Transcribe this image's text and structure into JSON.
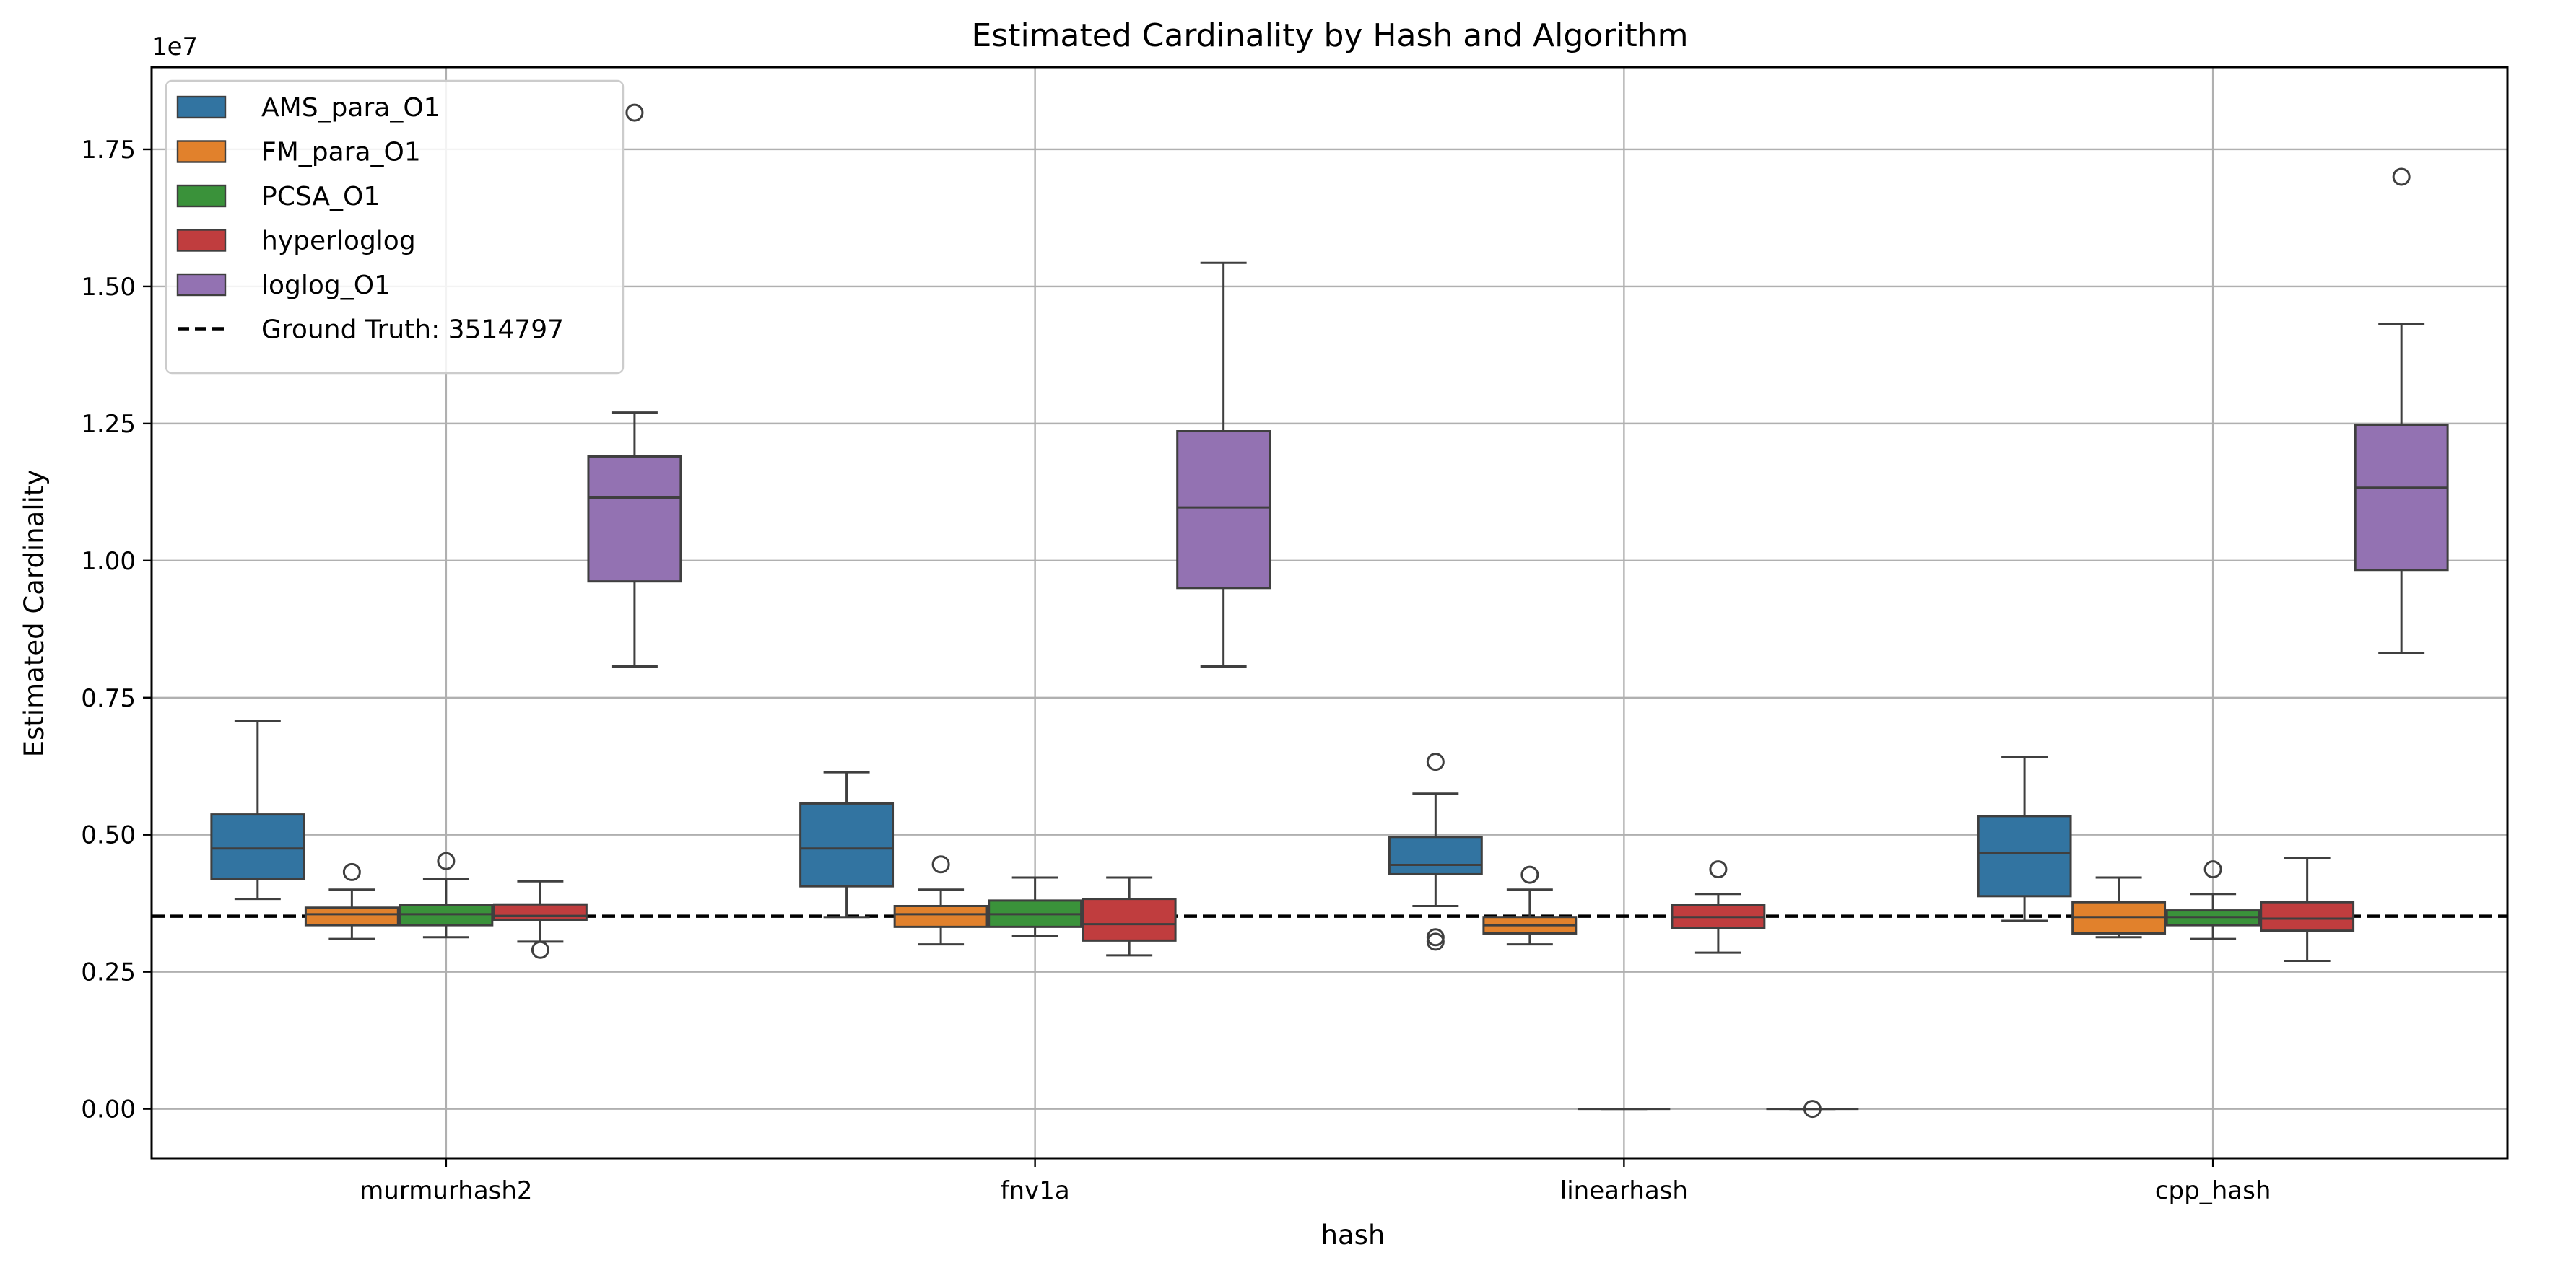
{
  "chart_data": {
    "type": "box",
    "title": "Estimated Cardinality by Hash and Algorithm",
    "xlabel": "hash",
    "ylabel": "Estimated Cardinality",
    "y_offset_label": "1e7",
    "y_multiplier": 10000000,
    "ylim": [
      -0.09,
      1.9
    ],
    "yticks": [
      0.0,
      0.25,
      0.5,
      0.75,
      1.0,
      1.25,
      1.5,
      1.75
    ],
    "ytick_labels": [
      "0.00",
      "0.25",
      "0.50",
      "0.75",
      "1.00",
      "1.25",
      "1.50",
      "1.75"
    ],
    "grid": true,
    "legend_position": "top-left",
    "categories": [
      "murmurhash2",
      "fnv1a",
      "linearhash",
      "cpp_hash"
    ],
    "series": [
      {
        "name": "AMS_para_O1",
        "color": "#3274a1",
        "boxes": [
          {
            "whislo": 0.383,
            "q1": 0.42,
            "med": 0.475,
            "q3": 0.537,
            "whishi": 0.707,
            "fliers": []
          },
          {
            "whislo": 0.35,
            "q1": 0.406,
            "med": 0.475,
            "q3": 0.557,
            "whishi": 0.614,
            "fliers": []
          },
          {
            "whislo": 0.37,
            "q1": 0.428,
            "med": 0.445,
            "q3": 0.496,
            "whishi": 0.575,
            "fliers": [
              0.633,
              0.313,
              0.305
            ]
          },
          {
            "whislo": 0.343,
            "q1": 0.388,
            "med": 0.467,
            "q3": 0.534,
            "whishi": 0.642,
            "fliers": []
          }
        ]
      },
      {
        "name": "FM_para_O1",
        "color": "#e1812c",
        "boxes": [
          {
            "whislo": 0.31,
            "q1": 0.335,
            "med": 0.355,
            "q3": 0.367,
            "whishi": 0.4,
            "fliers": [
              0.432
            ]
          },
          {
            "whislo": 0.3,
            "q1": 0.332,
            "med": 0.355,
            "q3": 0.37,
            "whishi": 0.4,
            "fliers": [
              0.446
            ]
          },
          {
            "whislo": 0.3,
            "q1": 0.32,
            "med": 0.335,
            "q3": 0.35,
            "whishi": 0.4,
            "fliers": [
              0.427
            ]
          },
          {
            "whislo": 0.313,
            "q1": 0.32,
            "med": 0.35,
            "q3": 0.377,
            "whishi": 0.422,
            "fliers": []
          }
        ]
      },
      {
        "name": "PCSA_O1",
        "color": "#3a923a",
        "boxes": [
          {
            "whislo": 0.313,
            "q1": 0.335,
            "med": 0.355,
            "q3": 0.372,
            "whishi": 0.42,
            "fliers": [
              0.452
            ]
          },
          {
            "whislo": 0.316,
            "q1": 0.332,
            "med": 0.355,
            "q3": 0.38,
            "whishi": 0.422,
            "fliers": []
          },
          {
            "whislo": 0.0,
            "q1": 0.0,
            "med": 0.0,
            "q3": 0.0,
            "whishi": 0.0,
            "fliers": []
          },
          {
            "whislo": 0.31,
            "q1": 0.335,
            "med": 0.35,
            "q3": 0.362,
            "whishi": 0.392,
            "fliers": [
              0.437
            ]
          }
        ]
      },
      {
        "name": "hyperloglog",
        "color": "#c03d3e",
        "boxes": [
          {
            "whislo": 0.305,
            "q1": 0.345,
            "med": 0.352,
            "q3": 0.373,
            "whishi": 0.415,
            "fliers": [
              0.29
            ]
          },
          {
            "whislo": 0.28,
            "q1": 0.307,
            "med": 0.337,
            "q3": 0.383,
            "whishi": 0.422,
            "fliers": []
          },
          {
            "whislo": 0.285,
            "q1": 0.33,
            "med": 0.35,
            "q3": 0.372,
            "whishi": 0.392,
            "fliers": [
              0.437
            ]
          },
          {
            "whislo": 0.27,
            "q1": 0.325,
            "med": 0.347,
            "q3": 0.377,
            "whishi": 0.458,
            "fliers": []
          }
        ]
      },
      {
        "name": "loglog_O1",
        "color": "#9372b2",
        "boxes": [
          {
            "whislo": 0.807,
            "q1": 0.962,
            "med": 1.115,
            "q3": 1.19,
            "whishi": 1.27,
            "fliers": [
              1.817
            ]
          },
          {
            "whislo": 0.807,
            "q1": 0.95,
            "med": 1.097,
            "q3": 1.236,
            "whishi": 1.543,
            "fliers": []
          },
          {
            "whislo": 0.0,
            "q1": 0.0,
            "med": 0.0,
            "q3": 0.0,
            "whishi": 0.0,
            "fliers": [
              0.0
            ]
          },
          {
            "whislo": 0.832,
            "q1": 0.983,
            "med": 1.133,
            "q3": 1.247,
            "whishi": 1.432,
            "fliers": [
              1.7
            ]
          }
        ]
      }
    ],
    "reference_line": {
      "label": "Ground Truth: 3514797",
      "value": 0.3514797,
      "color": "#000000",
      "style": "dashed"
    }
  }
}
